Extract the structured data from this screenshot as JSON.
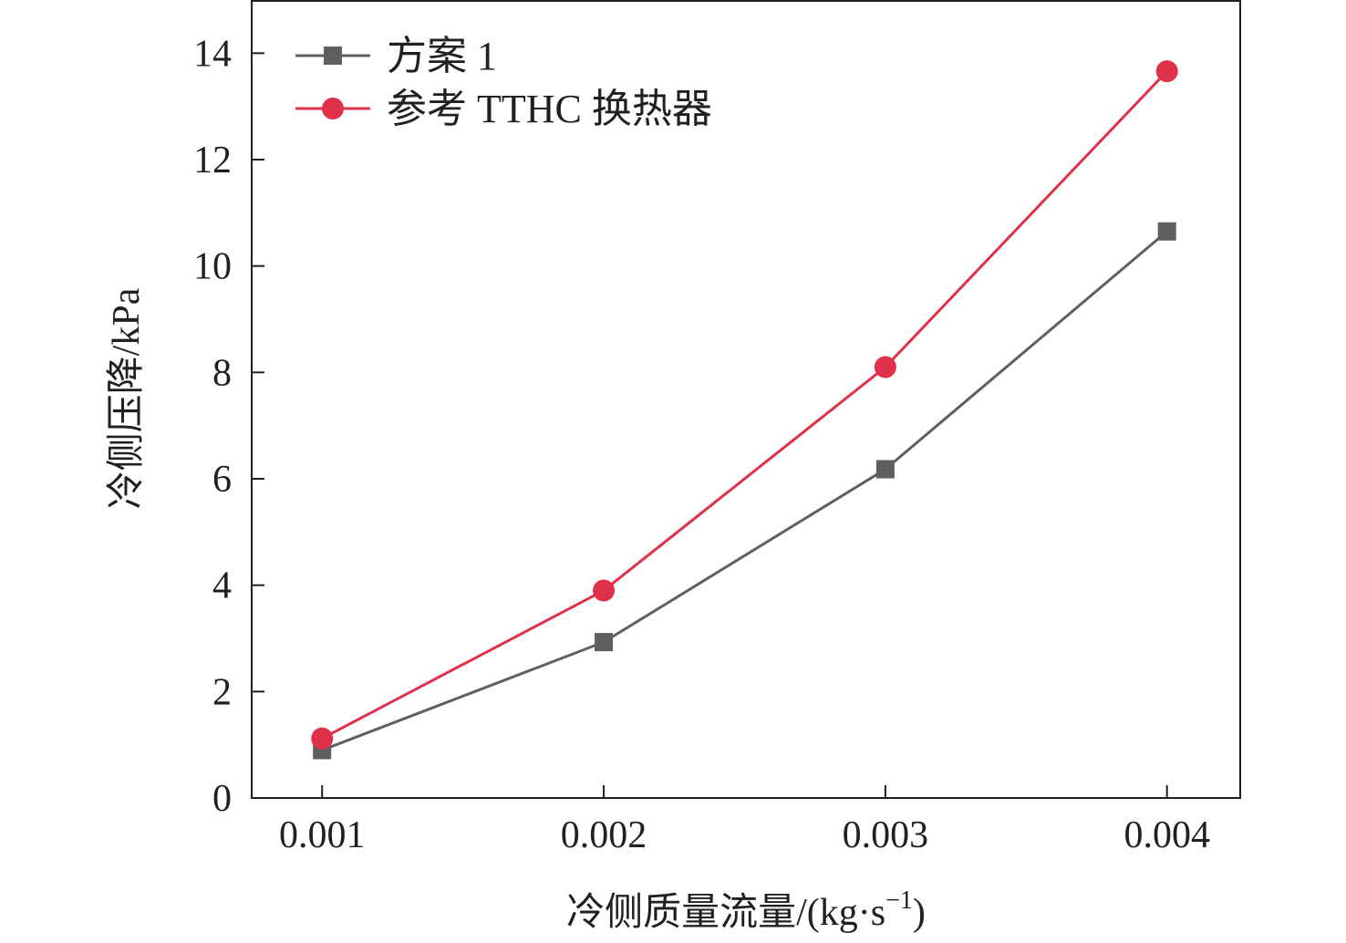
{
  "chart_data": {
    "type": "line",
    "x": [
      0.001,
      0.002,
      0.003,
      0.004
    ],
    "x_tick_labels": [
      "0.001",
      "0.002",
      "0.003",
      "0.004"
    ],
    "y_ticks": [
      0,
      2,
      4,
      6,
      8,
      10,
      12,
      14
    ],
    "y_tick_labels": [
      "0",
      "2",
      "4",
      "6",
      "8",
      "10",
      "12",
      "14"
    ],
    "xlim": [
      0.00075,
      0.00426
    ],
    "ylim": [
      0,
      15
    ],
    "xlabel": "冷侧质量流量/(kg·s",
    "xlabel_sup": "−1",
    "xlabel_end": ")",
    "ylabel": "冷侧压降/kPa",
    "legend_position": "top-left",
    "grid": false,
    "series": [
      {
        "name": "方案 1",
        "values": [
          0.9,
          2.93,
          6.18,
          10.65
        ],
        "color": "#5f5f5f",
        "marker": "square"
      },
      {
        "name": "参考 TTHC 换热器",
        "values": [
          1.12,
          3.9,
          8.1,
          13.66
        ],
        "color": "#e0314b",
        "marker": "circle"
      }
    ]
  }
}
